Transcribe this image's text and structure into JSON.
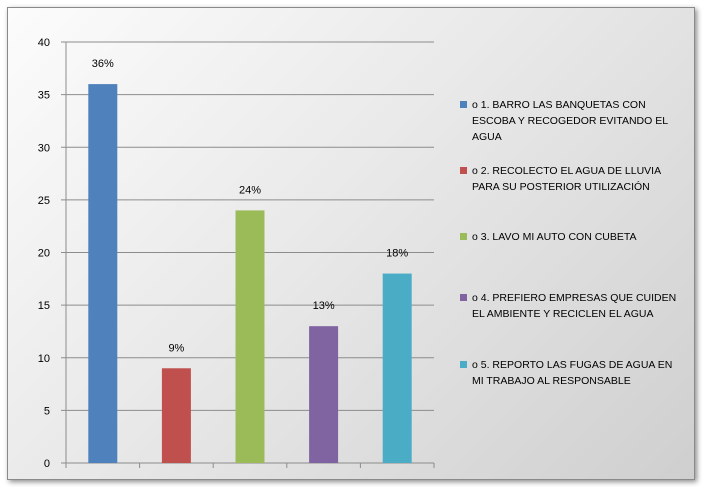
{
  "chart_data": {
    "type": "bar",
    "title": "",
    "xlabel": "",
    "ylabel": "",
    "ylim": [
      0,
      40
    ],
    "yticks": [
      0,
      5,
      10,
      15,
      20,
      25,
      30,
      35,
      40
    ],
    "grid": true,
    "legend_position": "right",
    "categories": [
      "o 1. BARRO LAS BANQUETAS CON ESCOBA Y RECOGEDOR EVITANDO EL AGUA",
      "o 2. RECOLECTO EL AGUA DE LLUVIA PARA SU POSTERIOR UTILIZACIÓN",
      "o 3. LAVO MI AUTO CON CUBETA",
      "o 4. PREFIERO EMPRESAS QUE CUIDEN EL AMBIENTE Y RECICLEN EL AGUA",
      "o 5. REPORTO LAS FUGAS DE AGUA EN MI TRABAJO AL RESPONSABLE"
    ],
    "values": [
      36,
      9,
      24,
      13,
      18
    ],
    "data_labels": [
      "36%",
      "9%",
      "24%",
      "13%",
      "18%"
    ],
    "colors": [
      "#4f81bd",
      "#c0504d",
      "#9bbb59",
      "#8064a2",
      "#4bacc6"
    ]
  }
}
